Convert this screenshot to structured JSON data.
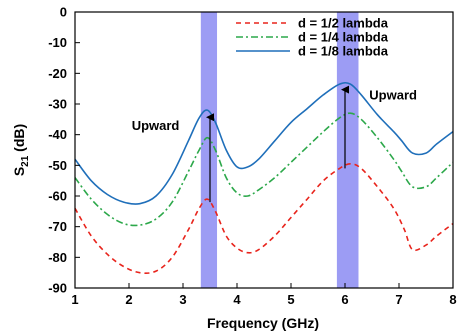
{
  "chart_data": {
    "type": "line",
    "xlabel": "Frequency (GHz)",
    "ylabel_main": "S",
    "ylabel_sub": "21",
    "ylabel_unit": " (dB)",
    "xlim": [
      1,
      8
    ],
    "ylim": [
      -90,
      0
    ],
    "xticks": [
      1,
      2,
      3,
      4,
      5,
      6,
      7,
      8
    ],
    "yticks": [
      0,
      -10,
      -20,
      -30,
      -40,
      -50,
      -60,
      -70,
      -80,
      -90
    ],
    "legend_position": "top-right",
    "grid": false,
    "highlight_bands": [
      {
        "x0": 3.33,
        "x1": 3.63,
        "color": "#7b7bf0"
      },
      {
        "x0": 5.85,
        "x1": 6.25,
        "color": "#7b7bf0"
      }
    ],
    "series": [
      {
        "name": "d = 1/2 lambda",
        "color": "#e8241c",
        "dash": "5,4",
        "x": [
          1.0,
          1.3,
          1.6,
          1.9,
          2.2,
          2.5,
          2.8,
          3.1,
          3.3,
          3.45,
          3.6,
          3.8,
          4.0,
          4.2,
          4.4,
          4.7,
          5.0,
          5.3,
          5.6,
          5.9,
          6.1,
          6.3,
          6.6,
          6.9,
          7.1,
          7.25,
          7.5,
          7.7,
          8.0
        ],
        "y": [
          -64,
          -73,
          -79,
          -83,
          -85,
          -84.5,
          -80,
          -71,
          -64,
          -61,
          -65,
          -73,
          -77,
          -78.5,
          -77.5,
          -73,
          -67,
          -61,
          -55,
          -51,
          -49.5,
          -51,
          -57,
          -64,
          -71,
          -77.5,
          -76,
          -73,
          -69
        ]
      },
      {
        "name": "d = 1/4 lambda",
        "color": "#2ca84a",
        "dash": "7,3,2,3",
        "x": [
          1.0,
          1.3,
          1.6,
          1.9,
          2.2,
          2.5,
          2.8,
          3.1,
          3.3,
          3.45,
          3.6,
          3.8,
          4.0,
          4.2,
          4.4,
          4.7,
          5.0,
          5.3,
          5.6,
          5.9,
          6.1,
          6.3,
          6.6,
          6.9,
          7.05,
          7.25,
          7.5,
          7.7,
          8.0
        ],
        "y": [
          -54,
          -61,
          -66,
          -69,
          -69.5,
          -67.5,
          -62,
          -52,
          -45,
          -41,
          -45,
          -54,
          -59,
          -60,
          -58,
          -54,
          -49,
          -44,
          -39,
          -34.5,
          -33,
          -35,
          -41,
          -48,
          -52,
          -57,
          -57,
          -54,
          -49
        ]
      },
      {
        "name": "d = 1/8 lambda",
        "color": "#1f6fba",
        "dash": "",
        "x": [
          1.0,
          1.3,
          1.6,
          1.9,
          2.2,
          2.5,
          2.8,
          3.1,
          3.3,
          3.45,
          3.6,
          3.8,
          4.0,
          4.2,
          4.4,
          4.7,
          5.0,
          5.3,
          5.6,
          5.9,
          6.1,
          6.3,
          6.6,
          6.9,
          7.05,
          7.25,
          7.5,
          7.7,
          8.0
        ],
        "y": [
          -48,
          -55,
          -59.5,
          -62,
          -62.5,
          -60,
          -53,
          -42,
          -34.5,
          -32,
          -36,
          -45,
          -50.5,
          -50.5,
          -48,
          -42,
          -36,
          -31.5,
          -27,
          -23.5,
          -23.5,
          -27,
          -33.5,
          -39,
          -42,
          -46,
          -46,
          -43,
          -39
        ]
      }
    ],
    "arrows": [
      {
        "x": 3.5,
        "y_from": -62,
        "y_to": -33
      },
      {
        "x": 6.0,
        "y_from": -51,
        "y_to": -24
      }
    ],
    "annotations": [
      {
        "text": "Upward",
        "x": 2.05,
        "y": -38.5,
        "anchor": "start"
      },
      {
        "text": "Upward",
        "x": 6.45,
        "y": -28.5,
        "anchor": "start"
      }
    ]
  }
}
